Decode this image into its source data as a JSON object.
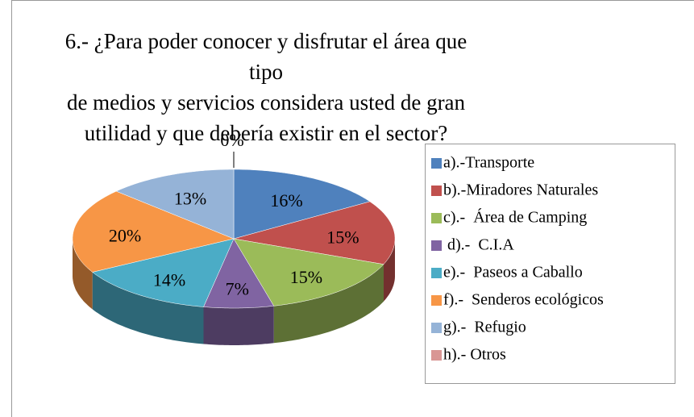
{
  "chart_data": {
    "type": "pie",
    "title": "6.- ¿Para poder conocer y disfrutar el área que tipo\nde medios y servicios considera usted de gran\nutilidad y que debería existir en el sector?",
    "categories": [
      "a).-Transporte",
      "b).-Miradores Naturales",
      "c).-  Área de Camping",
      " d).-  C.I.A",
      "e).-  Paseos a Caballo",
      "f).-  Senderos ecológicos",
      "g).-  Refugio",
      "h).- Otros"
    ],
    "values": [
      16,
      15,
      15,
      7,
      14,
      20,
      13,
      0
    ],
    "value_labels": [
      "16%",
      "15%",
      "15%",
      "7%",
      "14%",
      "20%",
      "13%",
      "0%"
    ],
    "colors": [
      "#4f81bd",
      "#c0504d",
      "#9bbb59",
      "#8064a2",
      "#4bacc6",
      "#f79646",
      "#95b3d7",
      "#d99694"
    ],
    "legend": "right"
  }
}
